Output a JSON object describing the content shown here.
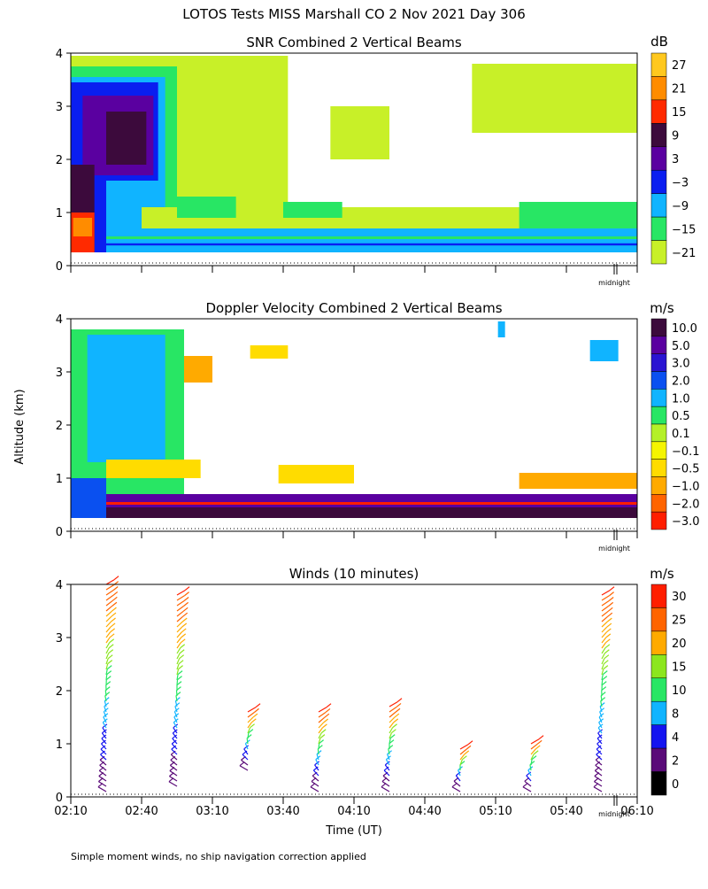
{
  "page": {
    "main_title": "LOTOS Tests MISS Marshall CO   2 Nov 2021 Day 306",
    "shared_ylabel": "Altitude (km)",
    "xlabel": "Time (UT)",
    "footnote": "Simple moment winds, no ship navigation correction applied"
  },
  "chart_data": [
    {
      "id": "snr",
      "type": "heatmap",
      "title": "SNR Combined 2 Vertical Beams",
      "ylim": [
        0,
        4
      ],
      "yticks": [
        "0",
        "1",
        "2",
        "3",
        "4"
      ],
      "xlim_minutes": [
        130,
        370
      ],
      "xticks_minutes": [
        130,
        160,
        190,
        220,
        250,
        280,
        310,
        340,
        370
      ],
      "midnight_label": "midnight",
      "colorbar": {
        "unit": "dB",
        "labels": [
          "27",
          "21",
          "15",
          "9",
          "3",
          "−3",
          "−9",
          "−15",
          "−21"
        ],
        "colors": [
          "#ffc81e",
          "#ff8c00",
          "#ff2a00",
          "#3c0a3c",
          "#5a00a0",
          "#0a1ef0",
          "#10b4ff",
          "#28e664",
          "#c8f028"
        ]
      },
      "regions": [
        {
          "t0": 130,
          "t1": 222,
          "h0": 0.25,
          "h1": 3.95,
          "c": "#c8f028"
        },
        {
          "t0": 130,
          "t1": 175,
          "h0": 0.25,
          "h1": 3.75,
          "c": "#28e664"
        },
        {
          "t0": 130,
          "t1": 170,
          "h0": 0.25,
          "h1": 3.55,
          "c": "#10b4ff"
        },
        {
          "t0": 130,
          "t1": 167,
          "h0": 1.6,
          "h1": 3.45,
          "c": "#0a1ef0"
        },
        {
          "t0": 130,
          "t1": 145,
          "h0": 0.25,
          "h1": 3.45,
          "c": "#0a1ef0"
        },
        {
          "t0": 135,
          "t1": 165,
          "h0": 1.7,
          "h1": 3.2,
          "c": "#5a00a0"
        },
        {
          "t0": 145,
          "t1": 162,
          "h0": 1.9,
          "h1": 2.9,
          "c": "#3c0a3c"
        },
        {
          "t0": 130,
          "t1": 140,
          "h0": 0.25,
          "h1": 1.9,
          "c": "#3c0a3c"
        },
        {
          "t0": 130,
          "t1": 140,
          "h0": 0.25,
          "h1": 1.0,
          "c": "#ff2a00"
        },
        {
          "t0": 131,
          "t1": 139,
          "h0": 0.55,
          "h1": 0.9,
          "c": "#ff8c00"
        },
        {
          "t0": 145,
          "t1": 375,
          "h0": 0.25,
          "h1": 0.7,
          "c": "#10b4ff"
        },
        {
          "t0": 145,
          "t1": 375,
          "h0": 0.38,
          "h1": 0.42,
          "c": "#0a1ef0"
        },
        {
          "t0": 145,
          "t1": 375,
          "h0": 0.5,
          "h1": 0.55,
          "c": "#28e664"
        },
        {
          "t0": 160,
          "t1": 375,
          "h0": 0.7,
          "h1": 1.1,
          "c": "#c8f028"
        },
        {
          "t0": 175,
          "t1": 205,
          "h0": 0.7,
          "h1": 2.0,
          "c": "#c8f028"
        },
        {
          "t0": 190,
          "t1": 215,
          "h0": 3.1,
          "h1": 3.7,
          "c": "#c8f028"
        },
        {
          "t0": 240,
          "t1": 265,
          "h0": 2.0,
          "h1": 3.0,
          "c": "#c8f028"
        },
        {
          "t0": 300,
          "t1": 370,
          "h0": 2.5,
          "h1": 3.8,
          "c": "#c8f028"
        },
        {
          "t0": 320,
          "t1": 370,
          "h0": 0.7,
          "h1": 1.2,
          "c": "#28e664"
        },
        {
          "t0": 175,
          "t1": 200,
          "h0": 0.9,
          "h1": 1.3,
          "c": "#28e664"
        },
        {
          "t0": 220,
          "t1": 245,
          "h0": 0.9,
          "h1": 1.2,
          "c": "#28e664"
        }
      ]
    },
    {
      "id": "doppler",
      "type": "heatmap",
      "title": "Doppler Velocity Combined 2 Vertical Beams",
      "ylim": [
        0,
        4
      ],
      "yticks": [
        "0",
        "1",
        "2",
        "3",
        "4"
      ],
      "xlim_minutes": [
        130,
        370
      ],
      "xticks_minutes": [
        130,
        160,
        190,
        220,
        250,
        280,
        310,
        340,
        370
      ],
      "midnight_label": "midnight",
      "colorbar": {
        "unit": "m/s",
        "labels": [
          "10.0",
          "5.0",
          "3.0",
          "2.0",
          "1.0",
          "0.5",
          "0.1",
          "−0.1",
          "−0.5",
          "−1.0",
          "−2.0",
          "−3.0"
        ],
        "colors": [
          "#3c0a3c",
          "#5a00a0",
          "#2a14d2",
          "#0a50f0",
          "#10b4ff",
          "#28e664",
          "#b4f028",
          "#f5f500",
          "#ffdc00",
          "#ffaa00",
          "#ff6400",
          "#ff1e00"
        ]
      },
      "regions": [
        {
          "t0": 130,
          "t1": 178,
          "h0": 0.7,
          "h1": 3.8,
          "c": "#28e664"
        },
        {
          "t0": 137,
          "t1": 170,
          "h0": 1.3,
          "h1": 3.7,
          "c": "#10b4ff"
        },
        {
          "t0": 130,
          "t1": 145,
          "h0": 0.25,
          "h1": 1.0,
          "c": "#0a50f0"
        },
        {
          "t0": 145,
          "t1": 185,
          "h0": 1.0,
          "h1": 1.35,
          "c": "#ffdc00"
        },
        {
          "t0": 178,
          "t1": 190,
          "h0": 2.8,
          "h1": 3.3,
          "c": "#ffaa00"
        },
        {
          "t0": 206,
          "t1": 222,
          "h0": 3.25,
          "h1": 3.5,
          "c": "#ffdc00"
        },
        {
          "t0": 218,
          "t1": 250,
          "h0": 0.9,
          "h1": 1.25,
          "c": "#ffdc00"
        },
        {
          "t0": 320,
          "t1": 375,
          "h0": 0.8,
          "h1": 1.1,
          "c": "#ffaa00"
        },
        {
          "t0": 145,
          "t1": 375,
          "h0": 0.25,
          "h1": 0.45,
          "c": "#3c0a3c"
        },
        {
          "t0": 145,
          "t1": 375,
          "h0": 0.45,
          "h1": 0.7,
          "c": "#5a00a0"
        },
        {
          "t0": 145,
          "t1": 375,
          "h0": 0.5,
          "h1": 0.55,
          "c": "#ff1e00"
        },
        {
          "t0": 311,
          "t1": 314,
          "h0": 3.65,
          "h1": 3.95,
          "c": "#10b4ff"
        },
        {
          "t0": 350,
          "t1": 362,
          "h0": 3.2,
          "h1": 3.6,
          "c": "#10b4ff"
        }
      ]
    },
    {
      "id": "winds",
      "type": "scatter",
      "title": "Winds (10 minutes)",
      "ylim": [
        0,
        4
      ],
      "yticks": [
        "0",
        "1",
        "2",
        "3",
        "4"
      ],
      "xlim_minutes": [
        130,
        370
      ],
      "xticks_minutes": [
        130,
        160,
        190,
        220,
        250,
        280,
        310,
        340,
        370
      ],
      "xtick_labels": [
        "02:10",
        "02:40",
        "03:10",
        "03:40",
        "04:10",
        "04:40",
        "05:10",
        "05:40",
        "06:10"
      ],
      "midnight_label": "midnight",
      "colorbar": {
        "unit": "m/s",
        "labels": [
          "30",
          "25",
          "20",
          "15",
          "10",
          "8",
          "4",
          "2",
          "0"
        ],
        "colors": [
          "#ff1e00",
          "#ff6400",
          "#ffaa00",
          "#8ce61e",
          "#28e664",
          "#10b4ff",
          "#1414f0",
          "#5a0a78",
          "#000000"
        ]
      },
      "profiles": [
        {
          "t": 145,
          "h0": 0.1,
          "h1": 4.05,
          "dh": 0.1
        },
        {
          "t": 175,
          "h0": 0.2,
          "h1": 3.8,
          "dh": 0.1
        },
        {
          "t": 205,
          "h0": 0.5,
          "h1": 1.55,
          "dh": 0.1
        },
        {
          "t": 235,
          "h0": 0.1,
          "h1": 1.65,
          "dh": 0.1
        },
        {
          "t": 265,
          "h0": 0.1,
          "h1": 1.7,
          "dh": 0.1
        },
        {
          "t": 295,
          "h0": 0.1,
          "h1": 0.9,
          "dh": 0.1
        },
        {
          "t": 325,
          "h0": 0.1,
          "h1": 0.95,
          "dh": 0.1
        },
        {
          "t": 355,
          "h0": 0.1,
          "h1": 3.75,
          "dh": 0.1
        }
      ]
    }
  ]
}
